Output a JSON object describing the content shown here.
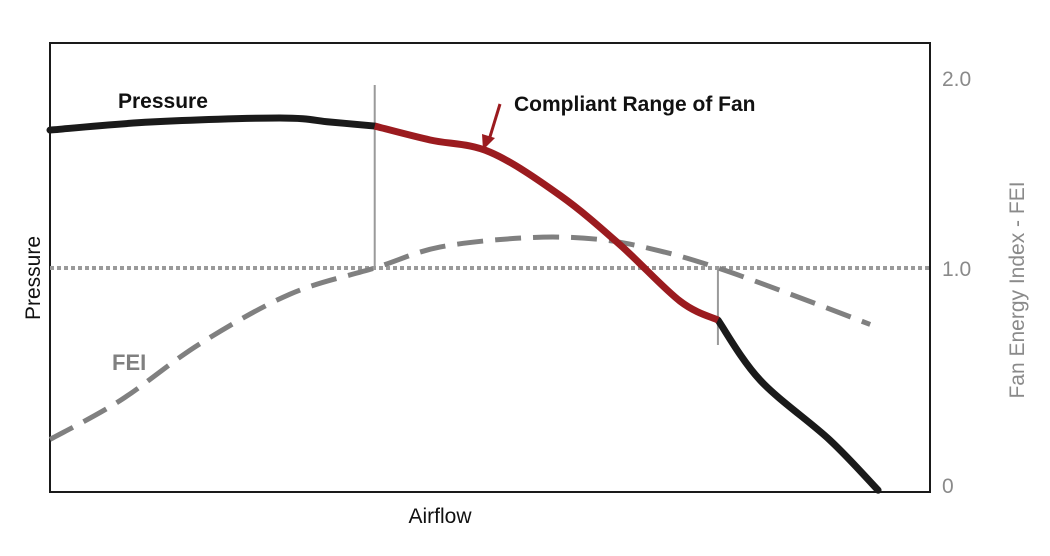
{
  "chart_data": {
    "type": "line",
    "xlabel": "Airflow",
    "ylabel": "Pressure",
    "y2label": "Fan Energy Index - FEI",
    "y2_ticks": [
      "0",
      "1.0",
      "2.0"
    ],
    "y2lim": [
      0,
      2.0
    ],
    "grid": false,
    "reference_line": {
      "axis": "y2",
      "value": 1.0,
      "style": "dotted",
      "color": "#9a9a9a"
    },
    "compliant_range_x": [
      36.9,
      75.9
    ],
    "annotation": "Compliant Range of Fan",
    "series": [
      {
        "name": "Pressure",
        "axis": "y",
        "color": "#1a1a1a",
        "highlight_color": "#9b1b1f",
        "x": [
          0,
          11.4,
          26.1,
          31.8,
          36.9,
          43.2,
          50,
          58,
          64.8,
          71.6,
          75.9,
          80.7,
          88.6,
          94.1
        ],
        "y": [
          80.6,
          82.4,
          83.3,
          82.4,
          81.5,
          78.4,
          75.7,
          66,
          55,
          42.5,
          38.3,
          24.9,
          11.6,
          0.4
        ]
      },
      {
        "name": "FEI",
        "axis": "y2",
        "color": "#808080",
        "style": "dashed",
        "x": [
          0,
          8,
          17,
          27.3,
          36.9,
          44.3,
          54.5,
          62.5,
          69.3,
          75.9,
          84.1,
          93.2
        ],
        "y": [
          0.21,
          0.39,
          0.65,
          0.88,
          1.0,
          1.11,
          1.16,
          1.15,
          1.09,
          1.0,
          0.88,
          0.74
        ]
      }
    ]
  }
}
